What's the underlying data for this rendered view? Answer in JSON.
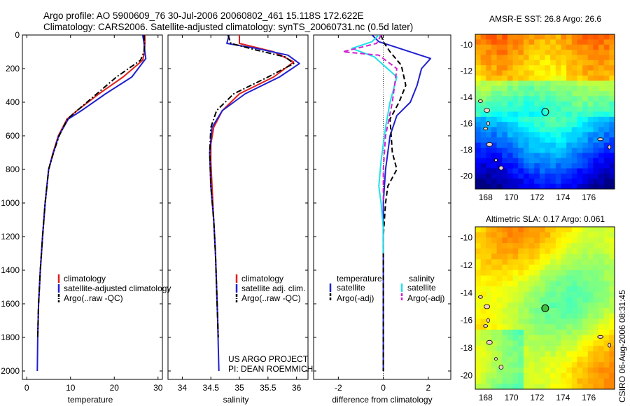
{
  "title_line1": "Argo profile: AO 5900609_76 30-Jul-2006 20060802_461 15.118S 172.622E",
  "title_line2": "Climatology: CARS2006. Satellite-adjusted climatology: synTS_20060731.nc (0.5d later)",
  "side_stamp": "CSIRO 06-Aug-2006 08:31:45",
  "colors": {
    "red": "#e0201c",
    "blue": "#2020d0",
    "black": "#000000",
    "cyan": "#20e0e8",
    "magenta": "#d020d0"
  },
  "chart_data": [
    {
      "type": "line",
      "name": "temperature",
      "xlabel": "temperature",
      "xlim": [
        -1,
        31
      ],
      "xticks": [
        0,
        10,
        20,
        30
      ],
      "ylim": [
        0,
        2050
      ],
      "yticks": [
        0,
        200,
        400,
        600,
        800,
        1000,
        1200,
        1400,
        1600,
        1800,
        2000
      ],
      "y_reversed": true,
      "legend": [
        "climatology",
        "satellite-adjusted climatology",
        "Argo(..raw -QC)"
      ],
      "series": [
        {
          "name": "climatology",
          "color": "red",
          "style": "solid",
          "x": [
            27.0,
            27.0,
            26.9,
            26.5,
            22.0,
            16.5,
            11.5,
            9.2,
            7.2,
            6.0,
            5.0,
            4.2,
            3.6,
            3.1,
            2.7,
            2.5
          ],
          "y": [
            0,
            50,
            100,
            150,
            250,
            350,
            450,
            500,
            600,
            700,
            800,
            1000,
            1200,
            1400,
            1600,
            1800
          ]
        },
        {
          "name": "satellite-adjusted climatology",
          "color": "blue",
          "style": "solid",
          "x": [
            26.5,
            26.8,
            27.0,
            27.2,
            24.0,
            18.0,
            12.5,
            9.5,
            7.3,
            6.1,
            5.0,
            4.2,
            3.6,
            3.1,
            2.7,
            2.5,
            2.4
          ],
          "y": [
            0,
            50,
            100,
            140,
            250,
            350,
            450,
            500,
            600,
            700,
            800,
            1000,
            1200,
            1400,
            1600,
            1800,
            2000
          ]
        },
        {
          "name": "Argo(..raw -QC)",
          "color": "black",
          "style": "dashdot",
          "x": [
            26.8,
            26.9,
            26.8,
            26.0,
            20.5,
            16.0,
            11.5,
            9.3,
            7.4,
            6.1,
            5.0,
            4.2,
            3.6,
            3.1,
            2.7,
            2.5
          ],
          "y": [
            0,
            50,
            100,
            150,
            250,
            350,
            450,
            500,
            600,
            700,
            800,
            1000,
            1200,
            1400,
            1600,
            1800
          ]
        }
      ]
    },
    {
      "type": "line",
      "name": "salinity",
      "xlabel": "salinity",
      "xlim": [
        33.75,
        36.2
      ],
      "xticks": [
        34,
        34.5,
        35,
        35.5,
        36
      ],
      "xticklabels": [
        "34",
        "34.5",
        "35",
        "35.5",
        "36"
      ],
      "ylim": [
        0,
        2050
      ],
      "y_reversed": true,
      "legend": [
        "climatology",
        "satellite adj. clim.",
        "Argo(..raw -QC)"
      ],
      "series": [
        {
          "name": "climatology",
          "color": "red",
          "style": "solid",
          "x": [
            35.0,
            35.0,
            35.6,
            35.95,
            35.6,
            35.0,
            34.7,
            34.55,
            34.5,
            34.5,
            34.52,
            34.55,
            34.58,
            34.6,
            34.62,
            34.63
          ],
          "y": [
            0,
            50,
            100,
            160,
            250,
            350,
            450,
            550,
            650,
            750,
            900,
            1100,
            1300,
            1500,
            1700,
            1800
          ]
        },
        {
          "name": "satellite adj. clim.",
          "color": "blue",
          "style": "solid",
          "x": [
            34.82,
            34.78,
            35.3,
            35.85,
            36.05,
            35.7,
            35.1,
            34.7,
            34.52,
            34.48,
            34.5,
            34.55,
            34.58,
            34.6,
            34.62,
            34.63,
            34.64
          ],
          "y": [
            0,
            50,
            80,
            120,
            170,
            250,
            350,
            450,
            550,
            700,
            900,
            1100,
            1300,
            1500,
            1700,
            1850,
            2000
          ]
        },
        {
          "name": "Argo(..raw -QC)",
          "color": "black",
          "style": "dashdot",
          "x": [
            34.8,
            34.85,
            35.3,
            35.8,
            35.95,
            35.5,
            34.9,
            34.6,
            34.5,
            34.48,
            34.5,
            34.55,
            34.58,
            34.6,
            34.62,
            34.63
          ],
          "y": [
            0,
            50,
            90,
            130,
            170,
            250,
            350,
            450,
            550,
            700,
            900,
            1100,
            1300,
            1500,
            1700,
            1800
          ]
        }
      ],
      "annotation_line1": "US ARGO PROJECT",
      "annotation_line2": "PI: DEAN ROEMMICH"
    },
    {
      "type": "line",
      "name": "difference",
      "xlabel": "difference from climatology",
      "xlim": [
        -3.1,
        3.0
      ],
      "xticks": [
        -2,
        0,
        2
      ],
      "ylim": [
        0,
        2050
      ],
      "y_reversed": true,
      "legend_headers": [
        "temperature",
        "salinity"
      ],
      "legend": [
        "satellite",
        "Argo(-adj)",
        "satellite",
        "Argo(-adj)"
      ],
      "series": [
        {
          "name": "temperature satellite",
          "color": "blue",
          "style": "solid",
          "x": [
            -0.5,
            -0.2,
            0.5,
            2.1,
            1.7,
            1.5,
            1.2,
            0.6,
            0.3,
            0.1,
            0.0,
            0.0,
            0.0,
            0.0,
            0.0
          ],
          "y": [
            0,
            40,
            70,
            140,
            200,
            300,
            400,
            480,
            600,
            800,
            1000,
            1200,
            1400,
            1700,
            2000
          ]
        },
        {
          "name": "temperature Argo(-adj)",
          "color": "black",
          "style": "dashed",
          "x": [
            -0.1,
            0.0,
            0.3,
            0.8,
            1.0,
            0.7,
            0.3,
            0.4,
            0.6,
            0.2,
            0.1,
            0.0,
            0.0,
            0.0,
            0.0
          ],
          "y": [
            0,
            40,
            100,
            180,
            300,
            400,
            500,
            700,
            800,
            900,
            1000,
            1200,
            1400,
            1700,
            2000
          ]
        },
        {
          "name": "salinity satellite",
          "color": "cyan",
          "style": "solid",
          "x": [
            -0.2,
            -0.5,
            -1.4,
            -0.4,
            0.6,
            0.3,
            0.1,
            -0.1,
            -0.2,
            -0.1,
            0.0,
            0.0,
            0.0
          ],
          "y": [
            0,
            40,
            80,
            130,
            250,
            400,
            550,
            750,
            900,
            1000,
            1150,
            1250,
            1300
          ]
        },
        {
          "name": "salinity Argo(-adj)",
          "color": "magenta",
          "style": "dashed",
          "x": [
            -0.1,
            -0.3,
            -1.8,
            -0.2,
            0.6,
            0.4,
            0.1,
            0.0,
            0.0
          ],
          "y": [
            0,
            50,
            100,
            120,
            200,
            400,
            600,
            800,
            1000
          ]
        }
      ]
    },
    {
      "type": "heatmap",
      "name": "sst-map",
      "title": "AMSR-E SST: 26.8 Argo: 26.6",
      "xlim": [
        167.2,
        178
      ],
      "xticks": [
        168,
        170,
        172,
        174,
        176
      ],
      "ylim": [
        -21,
        -9.2
      ],
      "yticks": [
        -20,
        -18,
        -16,
        -14,
        -12,
        -10
      ],
      "palette": "jet",
      "marker": {
        "lon": 172.622,
        "lat": -15.118
      }
    },
    {
      "type": "heatmap",
      "name": "sla-map",
      "title": "Altimetric SLA: 0.17 Argo: 0.061",
      "xlim": [
        167.2,
        178
      ],
      "xticks": [
        168,
        170,
        172,
        174,
        176
      ],
      "ylim": [
        -21,
        -9.2
      ],
      "yticks": [
        -20,
        -18,
        -16,
        -14,
        -12,
        -10
      ],
      "palette": "jet",
      "marker": {
        "lon": 172.622,
        "lat": -15.118
      }
    }
  ]
}
